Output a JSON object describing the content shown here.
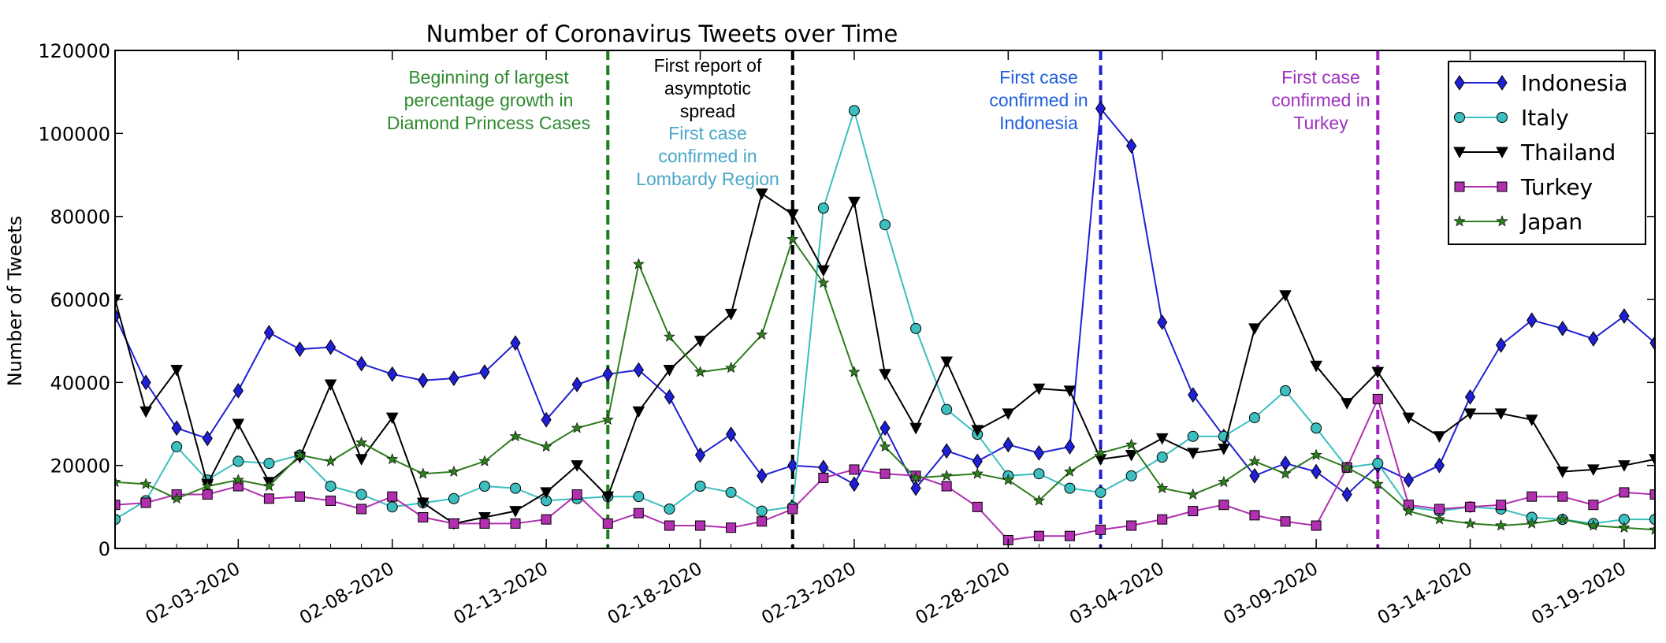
{
  "chart_data": {
    "type": "line",
    "title": "Number of Coronavirus Tweets over Time",
    "xlabel": "",
    "ylabel": "Number of Tweets",
    "ylim": [
      0,
      120000
    ],
    "grid": false,
    "legend_position": "top-right",
    "x_start_date": "01-30-2020",
    "num_days": 51,
    "x_ticks": [
      {
        "day": 4,
        "label": "02-03-2020"
      },
      {
        "day": 9,
        "label": "02-08-2020"
      },
      {
        "day": 14,
        "label": "02-13-2020"
      },
      {
        "day": 19,
        "label": "02-18-2020"
      },
      {
        "day": 24,
        "label": "02-23-2020"
      },
      {
        "day": 29,
        "label": "02-28-2020"
      },
      {
        "day": 34,
        "label": "03-04-2020"
      },
      {
        "day": 39,
        "label": "03-09-2020"
      },
      {
        "day": 44,
        "label": "03-14-2020"
      },
      {
        "day": 49,
        "label": "03-19-2020"
      }
    ],
    "y_ticks": [
      0,
      20000,
      40000,
      60000,
      80000,
      100000,
      120000
    ],
    "series": [
      {
        "name": "Indonesia",
        "color": "#1f1fd6",
        "marker": "diamond",
        "values": [
          56000,
          40000,
          29000,
          26500,
          38000,
          52000,
          48000,
          48500,
          44500,
          42000,
          40500,
          41000,
          42500,
          49500,
          31000,
          39500,
          42000,
          43000,
          36500,
          22500,
          27500,
          17500,
          20000,
          19500,
          15500,
          29000,
          14500,
          23500,
          21000,
          25000,
          23000,
          24500,
          106000,
          97000,
          54500,
          37000,
          27000,
          17500,
          20500,
          18500,
          13000,
          20000,
          16500,
          20000,
          36500,
          49000,
          55000,
          53000,
          50500,
          56000,
          49500
        ]
      },
      {
        "name": "Italy",
        "color": "#3bbfbf",
        "marker": "circle",
        "values": [
          7000,
          11500,
          24500,
          16500,
          21000,
          20500,
          22500,
          15000,
          13000,
          10000,
          11000,
          12000,
          15000,
          14500,
          11500,
          12000,
          12500,
          12500,
          9500,
          15000,
          13500,
          9000,
          10000,
          82000,
          105500,
          78000,
          53000,
          33500,
          27500,
          17500,
          18000,
          14500,
          13500,
          17500,
          22000,
          27000,
          27000,
          31500,
          38000,
          29000,
          19500,
          20500,
          10000,
          9000,
          10000,
          9500,
          7500,
          7000,
          6000,
          7000,
          7000
        ]
      },
      {
        "name": "Thailand",
        "color": "#000000",
        "marker": "triangle-down",
        "values": [
          60000,
          33000,
          43000,
          15500,
          30000,
          16000,
          22000,
          39500,
          21500,
          31500,
          11000,
          6000,
          7500,
          9000,
          13500,
          20000,
          12500,
          33000,
          43000,
          50000,
          56500,
          85500,
          80500,
          67000,
          83500,
          42000,
          29000,
          45000,
          28500,
          32500,
          38500,
          38000,
          21500,
          22500,
          26500,
          23000,
          24000,
          53000,
          61000,
          44000,
          35000,
          42500,
          31500,
          27000,
          32500,
          32500,
          31000,
          18500,
          19000,
          20000,
          21500
        ]
      },
      {
        "name": "Turkey",
        "color": "#b030b0",
        "marker": "square",
        "values": [
          10500,
          11000,
          13000,
          13000,
          15000,
          12000,
          12500,
          11500,
          9500,
          12500,
          7500,
          6000,
          6000,
          6000,
          7000,
          13000,
          6000,
          8500,
          5500,
          5500,
          5000,
          6500,
          9500,
          17000,
          19000,
          18000,
          17500,
          15000,
          10000,
          2000,
          3000,
          3000,
          4500,
          5500,
          7000,
          9000,
          10500,
          8000,
          6500,
          5500,
          19500,
          36000,
          10500,
          9500,
          10000,
          10500,
          12500,
          12500,
          10500,
          13500,
          13000
        ]
      },
      {
        "name": "Japan",
        "color": "#2e7d1e",
        "marker": "star",
        "values": [
          16000,
          15500,
          12000,
          15000,
          16500,
          15000,
          22500,
          21000,
          25500,
          21500,
          18000,
          18500,
          21000,
          27000,
          24500,
          29000,
          31000,
          68500,
          51000,
          42500,
          43500,
          51500,
          74500,
          64000,
          42500,
          24500,
          17000,
          17500,
          18000,
          16500,
          11500,
          18500,
          23000,
          25000,
          14500,
          13000,
          16000,
          21000,
          18000,
          22500,
          19500,
          15500,
          9000,
          7000,
          6000,
          5500,
          6000,
          7000,
          5500,
          5000,
          4500
        ]
      }
    ],
    "vertical_lines": [
      {
        "day": 16,
        "color": "#1b7d1b"
      },
      {
        "day": 22,
        "color": "#3bbfbf"
      },
      {
        "day": 22,
        "color": "#000000"
      },
      {
        "day": 32,
        "color": "#1f1fd6"
      },
      {
        "day": 41,
        "color": "#a020c0"
      }
    ],
    "annotations": [
      {
        "lines": [
          "Beginning of largest",
          "percentage growth in",
          "Diamond Princess Cases"
        ],
        "color": "#2e8b2e"
      },
      {
        "lines": [
          "First report of",
          "asymptotic",
          "spread"
        ],
        "color": "#000000"
      },
      {
        "lines": [
          "First case",
          "confirmed in",
          "Lombardy Region"
        ],
        "color": "#4aa7c8"
      },
      {
        "lines": [
          "First case",
          "confirmed in",
          "Indonesia"
        ],
        "color": "#1f5ee0"
      },
      {
        "lines": [
          "First case",
          "confirmed in",
          "Turkey"
        ],
        "color": "#a030c0"
      }
    ]
  }
}
